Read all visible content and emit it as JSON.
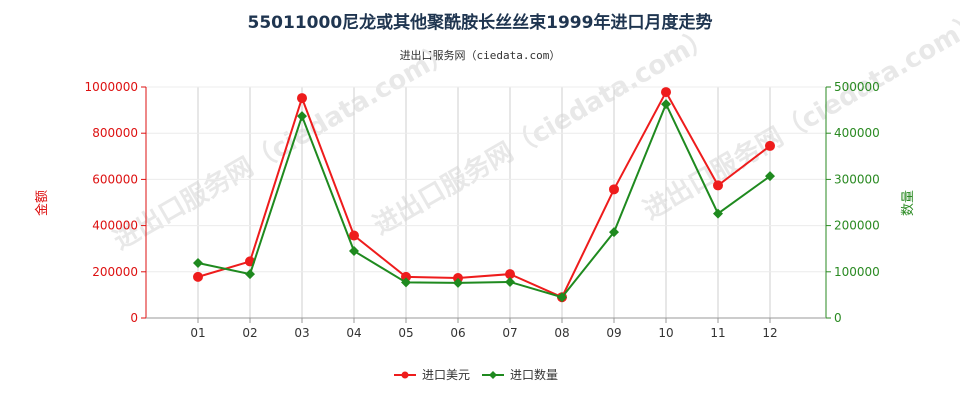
{
  "chart_data": {
    "type": "line",
    "title": "55011000尼龙或其他聚酰胺长丝丝束1999年进口月度走势",
    "subtitle": "进出口服务网（ciedata.com）",
    "watermark": "进出口服务网（ciedata.com）",
    "categories": [
      "01",
      "02",
      "03",
      "04",
      "05",
      "06",
      "07",
      "08",
      "09",
      "10",
      "11",
      "12"
    ],
    "y_left": {
      "label": "金额",
      "range": [
        0,
        1000000
      ],
      "ticks": [
        "0",
        "200000",
        "400000",
        "600000",
        "800000",
        "1000000"
      ],
      "color": "#dd1111"
    },
    "y_right": {
      "label": "数量",
      "range": [
        0,
        500000
      ],
      "ticks": [
        "0",
        "100000",
        "200000",
        "300000",
        "400000",
        "500000"
      ],
      "color": "#2a8a22"
    },
    "series": [
      {
        "name": "进口美元",
        "axis": "left",
        "color": "#ee1c1c",
        "marker": "circle",
        "values": [
          178000,
          245000,
          952000,
          357000,
          178000,
          173000,
          190000,
          90000,
          557000,
          978000,
          574000,
          745000
        ]
      },
      {
        "name": "进口数量",
        "axis": "right",
        "color": "#1f8a1f",
        "marker": "diamond",
        "values": [
          119000,
          95000,
          437000,
          145000,
          77000,
          76000,
          78000,
          45000,
          186000,
          463000,
          226000,
          307000
        ]
      }
    ],
    "grid": "vertical",
    "legend_position": "bottom-center"
  }
}
